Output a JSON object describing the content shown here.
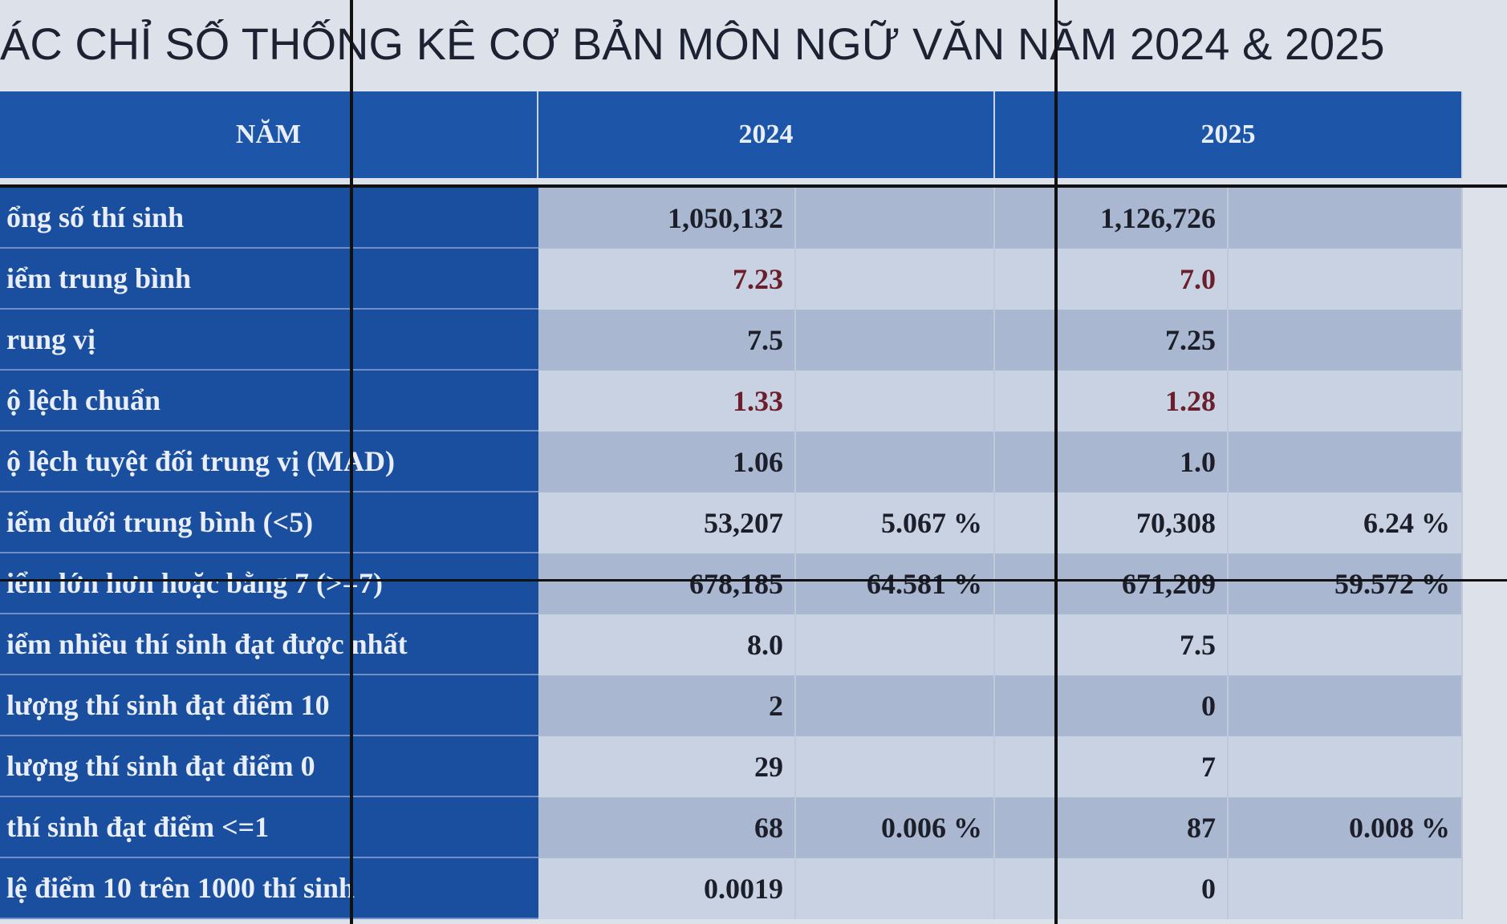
{
  "header": {
    "title": "ÁC CHỈ SỐ THỐNG KÊ CƠ BẢN MÔN NGỮ VĂN NĂM 2024 & 2025"
  },
  "table": {
    "columns": [
      "NĂM",
      "2024",
      "2025"
    ],
    "rows": [
      {
        "label": "ổng số thí sinh",
        "v2024": "1,050,132",
        "v2025": "1,126,726"
      },
      {
        "label": "iểm trung bình",
        "v2024": "7.23",
        "v2025": "7.0"
      },
      {
        "label": "rung vị",
        "v2024": "7.5",
        "v2025": "7.25"
      },
      {
        "label": "ộ lệch chuẩn",
        "v2024": "1.33",
        "v2025": "1.28"
      },
      {
        "label": "ộ lệch tuyệt đối trung vị (MAD)",
        "v2024": "1.06",
        "v2025": "1.0"
      },
      {
        "label": "iểm dưới trung bình (<5)",
        "v2024": "53,207",
        "p2024": "5.067 %",
        "v2025": "70,308",
        "p2025": "6.24 %"
      },
      {
        "label": "iểm lớn hơn hoặc bằng 7 (>=7)",
        "v2024": "678,185",
        "p2024": "64.581 %",
        "v2025": "671,209",
        "p2025": "59.572 %"
      },
      {
        "label": "iểm nhiều thí sinh đạt được nhất",
        "v2024": "8.0",
        "v2025": "7.5"
      },
      {
        "label": "lượng thí sinh đạt điểm 10",
        "v2024": "2",
        "v2025": "0"
      },
      {
        "label": "lượng thí sinh đạt điểm 0",
        "v2024": "29",
        "v2025": "7"
      },
      {
        "label": "thí sinh đạt điểm <=1",
        "v2024": "68",
        "p2024": "0.006 %",
        "v2025": "87",
        "p2025": "0.008 %"
      },
      {
        "label": "lệ điểm 10 trên 1000 thí sinh",
        "v2024": "0.0019",
        "v2025": "0"
      }
    ]
  }
}
